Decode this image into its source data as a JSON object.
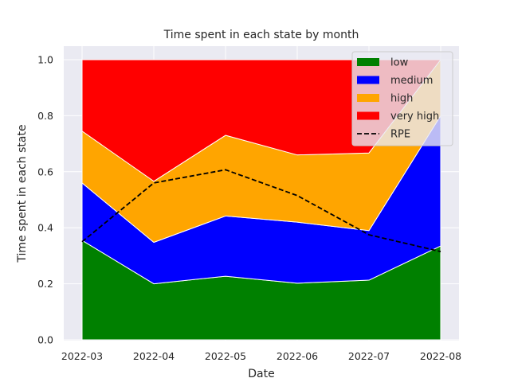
{
  "chart_data": {
    "type": "area",
    "title": "Time spent in each state by month",
    "xlabel": "Date",
    "ylabel": "Time spent in each state",
    "x": [
      "2022-03",
      "2022-04",
      "2022-05",
      "2022-06",
      "2022-07",
      "2022-08"
    ],
    "ylim": [
      0,
      1.0
    ],
    "yticks": [
      "0.0",
      "0.2",
      "0.4",
      "0.6",
      "0.8",
      "1.0"
    ],
    "grid": true,
    "legend_position": "top-right",
    "stacked": true,
    "series": [
      {
        "name": "low",
        "color": "#008000",
        "values": [
          0.355,
          0.2,
          0.227,
          0.202,
          0.213,
          0.335
        ]
      },
      {
        "name": "medium",
        "color": "#0000ff",
        "values": [
          0.205,
          0.148,
          0.215,
          0.218,
          0.177,
          0.465
        ]
      },
      {
        "name": "high",
        "color": "#ffa500",
        "values": [
          0.185,
          0.218,
          0.288,
          0.24,
          0.277,
          0.2
        ]
      },
      {
        "name": "very high",
        "color": "#ff0000",
        "values": [
          0.255,
          0.434,
          0.27,
          0.34,
          0.333,
          0.0
        ]
      }
    ],
    "line": {
      "name": "RPE",
      "color": "#000000",
      "style": "dashed",
      "values": [
        0.35,
        0.56,
        0.607,
        0.515,
        0.375,
        0.315
      ]
    }
  }
}
